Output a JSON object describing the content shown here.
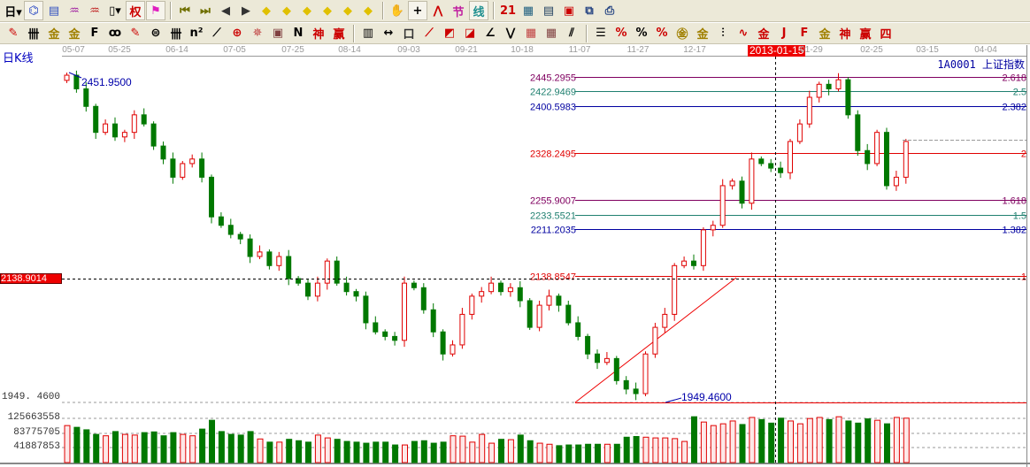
{
  "toolbar1": [
    {
      "name": "period-day-icon",
      "g": "日▾",
      "c": "#000"
    },
    {
      "name": "chart-view-icon",
      "g": "⌬",
      "c": "#2040c0",
      "on": true
    },
    {
      "name": "info-icon",
      "g": "▤",
      "c": "#3050c0"
    },
    {
      "name": "indicator3-icon",
      "g": "♒",
      "c": "#a020a0"
    },
    {
      "name": "indicator9-icon",
      "g": "♒",
      "c": "#c02020"
    },
    {
      "name": "candle-type-icon",
      "g": "▯▾",
      "c": "#000"
    },
    {
      "name": "right-icon",
      "g": "权",
      "c": "#c00",
      "on": true
    },
    {
      "name": "flag-icon",
      "g": "⚑",
      "c": "#e020c0",
      "on": true
    },
    {
      "name": "first-icon",
      "g": "⏮",
      "c": "#707000"
    },
    {
      "name": "last-icon",
      "g": "⏭",
      "c": "#707000"
    },
    {
      "name": "prev-icon",
      "g": "◀",
      "c": "#333"
    },
    {
      "name": "next-icon",
      "g": "▶",
      "c": "#333"
    },
    {
      "name": "move-left-icon",
      "g": "◆",
      "c": "#e0c000"
    },
    {
      "name": "move-right-icon",
      "g": "◆",
      "c": "#e0c000"
    },
    {
      "name": "zoom-in-icon",
      "g": "◆",
      "c": "#e0c000"
    },
    {
      "name": "zoom-out-icon",
      "g": "◆",
      "c": "#e0c000"
    },
    {
      "name": "expand-icon",
      "g": "◆",
      "c": "#e0c000"
    },
    {
      "name": "shrink-icon",
      "g": "◆",
      "c": "#e0c000"
    },
    {
      "name": "hand-icon",
      "g": "✋",
      "c": "#333"
    },
    {
      "name": "crosshair-icon",
      "g": "+",
      "c": "#000",
      "on": true
    },
    {
      "name": "line-icon",
      "g": "⋀",
      "c": "#c00"
    },
    {
      "name": "section-icon",
      "g": "节",
      "c": "#c020a0"
    },
    {
      "name": "draw-icon",
      "g": "线",
      "c": "#209090",
      "on": true
    },
    {
      "name": "calendar-icon",
      "g": "21",
      "c": "#c00"
    },
    {
      "name": "calculator-icon",
      "g": "▦",
      "c": "#206080"
    },
    {
      "name": "note-icon",
      "g": "▤",
      "c": "#204060"
    },
    {
      "name": "save-icon",
      "g": "▣",
      "c": "#c00"
    },
    {
      "name": "network-icon",
      "g": "⧉",
      "c": "#204080"
    },
    {
      "name": "print-icon",
      "g": "⎙",
      "c": "#204080"
    }
  ],
  "toolbar2": [
    {
      "name": "pencil-icon",
      "g": "✎",
      "c": "#c00"
    },
    {
      "name": "hash-icon",
      "g": "卌",
      "c": "#000"
    },
    {
      "name": "gold1-icon",
      "g": "金",
      "c": "#a08000"
    },
    {
      "name": "gold2-icon",
      "g": "金",
      "c": "#a08000"
    },
    {
      "name": "f-icon",
      "g": "F",
      "c": "#000"
    },
    {
      "name": "spiral-icon",
      "g": "ꝏ",
      "c": "#000"
    },
    {
      "name": "eraser-icon",
      "g": "✎",
      "c": "#c00"
    },
    {
      "name": "circle-icon",
      "g": "⊜",
      "c": "#000"
    },
    {
      "name": "hash2-icon",
      "g": "卌",
      "c": "#000"
    },
    {
      "name": "n2-icon",
      "g": "n²",
      "c": "#000"
    },
    {
      "name": "arrow-icon",
      "g": "⟋",
      "c": "#000"
    },
    {
      "name": "target-icon",
      "g": "⊕",
      "c": "#c00"
    },
    {
      "name": "star-icon",
      "g": "✵",
      "c": "#c04040"
    },
    {
      "name": "box-icon",
      "g": "▣",
      "c": "#804040"
    },
    {
      "name": "n-icon",
      "g": "N",
      "c": "#000"
    },
    {
      "name": "shen-icon",
      "g": "神",
      "c": "#c00"
    },
    {
      "name": "ying-icon",
      "g": "赢",
      "c": "#c00"
    },
    {
      "name": "ruler-icon",
      "g": "▥",
      "c": "#000"
    },
    {
      "name": "width-icon",
      "g": "↔",
      "c": "#000"
    },
    {
      "name": "rect-icon",
      "g": "口",
      "c": "#333"
    },
    {
      "name": "fan-icon",
      "g": "⟋",
      "c": "#c00"
    },
    {
      "name": "fan2-icon",
      "g": "◩",
      "c": "#c00"
    },
    {
      "name": "fan3-icon",
      "g": "◪",
      "c": "#c00"
    },
    {
      "name": "angle-icon",
      "g": "∠",
      "c": "#000"
    },
    {
      "name": "wave-icon",
      "g": "⋁",
      "c": "#000"
    },
    {
      "name": "grid-icon",
      "g": "▦",
      "c": "#c04040"
    },
    {
      "name": "grid2-icon",
      "g": "▦",
      "c": "#804040"
    },
    {
      "name": "parallel-icon",
      "g": "⫽",
      "c": "#000"
    },
    {
      "name": "stats-icon",
      "g": "☰",
      "c": "#000"
    },
    {
      "name": "percent-range-icon",
      "g": "%",
      "c": "#c00"
    },
    {
      "name": "percent-icon",
      "g": "%",
      "c": "#000"
    },
    {
      "name": "percent-line-icon",
      "g": "%",
      "c": "#c00"
    },
    {
      "name": "gold-circle-icon",
      "g": "㊎",
      "c": "#a08000"
    },
    {
      "name": "gold-line-icon",
      "g": "金",
      "c": "#a08000"
    },
    {
      "name": "tower-icon",
      "g": "⫶",
      "c": "#000"
    },
    {
      "name": "cycle-icon",
      "g": "∿",
      "c": "#c00"
    },
    {
      "name": "gold-red-icon",
      "g": "金",
      "c": "#c00"
    },
    {
      "name": "j-icon",
      "g": "J",
      "c": "#c00"
    },
    {
      "name": "f-angle-icon",
      "g": "F",
      "c": "#c00"
    },
    {
      "name": "gold-angle-icon",
      "g": "金",
      "c": "#a08000"
    },
    {
      "name": "shen-angle-icon",
      "g": "神",
      "c": "#c00"
    },
    {
      "name": "ying-angle-icon",
      "g": "赢",
      "c": "#c00"
    },
    {
      "name": "four-icon",
      "g": "四",
      "c": "#c00"
    }
  ],
  "header": {
    "title": "日K线",
    "code_name": "1A0001  上证指数",
    "crosshair_date": "2013-01-15",
    "crosshair_price": "2138.9014"
  },
  "chart_data": {
    "type": "candlestick",
    "x_ticks": [
      "05-07",
      "05-25",
      "06-14",
      "07-05",
      "07-25",
      "08-14",
      "09-03",
      "09-21",
      "10-18",
      "11-07",
      "11-27",
      "12-17",
      "01-29",
      "02-25",
      "03-15",
      "04-04"
    ],
    "close": [
      2448,
      2427,
      2400,
      2360,
      2373,
      2353,
      2360,
      2387,
      2373,
      2339,
      2319,
      2291,
      2312,
      2319,
      2291,
      2230,
      2217,
      2203,
      2196,
      2169,
      2176,
      2155,
      2169,
      2135,
      2128,
      2108,
      2128,
      2162,
      2128,
      2115,
      2108,
      2067,
      2053,
      2046,
      2040,
      2128,
      2121,
      2087,
      2053,
      2019,
      2033,
      2080,
      2108,
      2115,
      2128,
      2115,
      2121,
      2101,
      2060,
      2094,
      2108,
      2094,
      2067,
      2046,
      2019,
      2006,
      2012,
      1978,
      1965,
      1958,
      2019,
      2060,
      2080,
      2155,
      2162,
      2155,
      2210,
      2217,
      2278,
      2285,
      2251,
      2319,
      2312,
      2305,
      2298,
      2346,
      2373,
      2414,
      2434,
      2427,
      2441,
      2387,
      2332,
      2312,
      2360,
      2278,
      2291,
      2346
    ],
    "volume": [
      105000000.0,
      100000000.0,
      93000000.0,
      80000000.0,
      76000000.0,
      88000000.0,
      80000000.0,
      78000000.0,
      85000000.0,
      87000000.0,
      76000000.0,
      85000000.0,
      80000000.0,
      76000000.0,
      95000000.0,
      120000000.0,
      88000000.0,
      80000000.0,
      78000000.0,
      88000000.0,
      67000000.0,
      58000000.0,
      58000000.0,
      66000000.0,
      62000000.0,
      58000000.0,
      78000000.0,
      70000000.0,
      66000000.0,
      60000000.0,
      58000000.0,
      55000000.0,
      58000000.0,
      58000000.0,
      50000000.0,
      50000000.0,
      60000000.0,
      62000000.0,
      55000000.0,
      58000000.0,
      76000000.0,
      75000000.0,
      58000000.0,
      80000000.0,
      55000000.0,
      66000000.0,
      65000000.0,
      78000000.0,
      62000000.0,
      55000000.0,
      52000000.0,
      48000000.0,
      50000000.0,
      50000000.0,
      52000000.0,
      52000000.0,
      52000000.0,
      52000000.0,
      72000000.0,
      74000000.0,
      72000000.0,
      70000000.0,
      70000000.0,
      68000000.0,
      60000000.0,
      130000000.0,
      115000000.0,
      105000000.0,
      110000000.0,
      118000000.0,
      108000000.0,
      128000000.0,
      122000000.0,
      112000000.0,
      126000000.0,
      118000000.0,
      110000000.0,
      125000000.0,
      128000000.0,
      122000000.0,
      130000000.0,
      118000000.0,
      112000000.0,
      124000000.0,
      120000000.0,
      110000000.0,
      128000000.0,
      126000000.0
    ],
    "price_labels": {
      "high": "2451.9500",
      "low": "1949.4600",
      "bottom_axis": "1949. 4600"
    },
    "volume_ticks": [
      "125663558",
      "83775705",
      "41887853"
    ],
    "volume_tick_values": [
      125663558,
      83775705,
      41887853
    ],
    "fib_levels": [
      {
        "price": "2445.2955",
        "ratio": "2.618",
        "value": 2445.2955,
        "color": "#800060"
      },
      {
        "price": "2422.9469",
        "ratio": "2.5",
        "value": 2422.9469,
        "color": "#208070"
      },
      {
        "price": "2400.5983",
        "ratio": "2.382",
        "value": 2400.5983,
        "color": "#0000a0"
      },
      {
        "price": "2328.2495",
        "ratio": "2",
        "value": 2328.2495,
        "color": "#e00000"
      },
      {
        "price": "2255.9007",
        "ratio": "1.618",
        "value": 2255.9007,
        "color": "#800060"
      },
      {
        "price": "2233.5521",
        "ratio": "1.5",
        "value": 2233.5521,
        "color": "#208070"
      },
      {
        "price": "2211.2035",
        "ratio": "1.382",
        "value": 2211.2035,
        "color": "#0000a0"
      },
      {
        "price": "2138.8547",
        "ratio": "1",
        "value": 2138.8547,
        "color": "#e00000"
      }
    ],
    "colors": {
      "up": "#e00000",
      "down": "#007800"
    }
  }
}
